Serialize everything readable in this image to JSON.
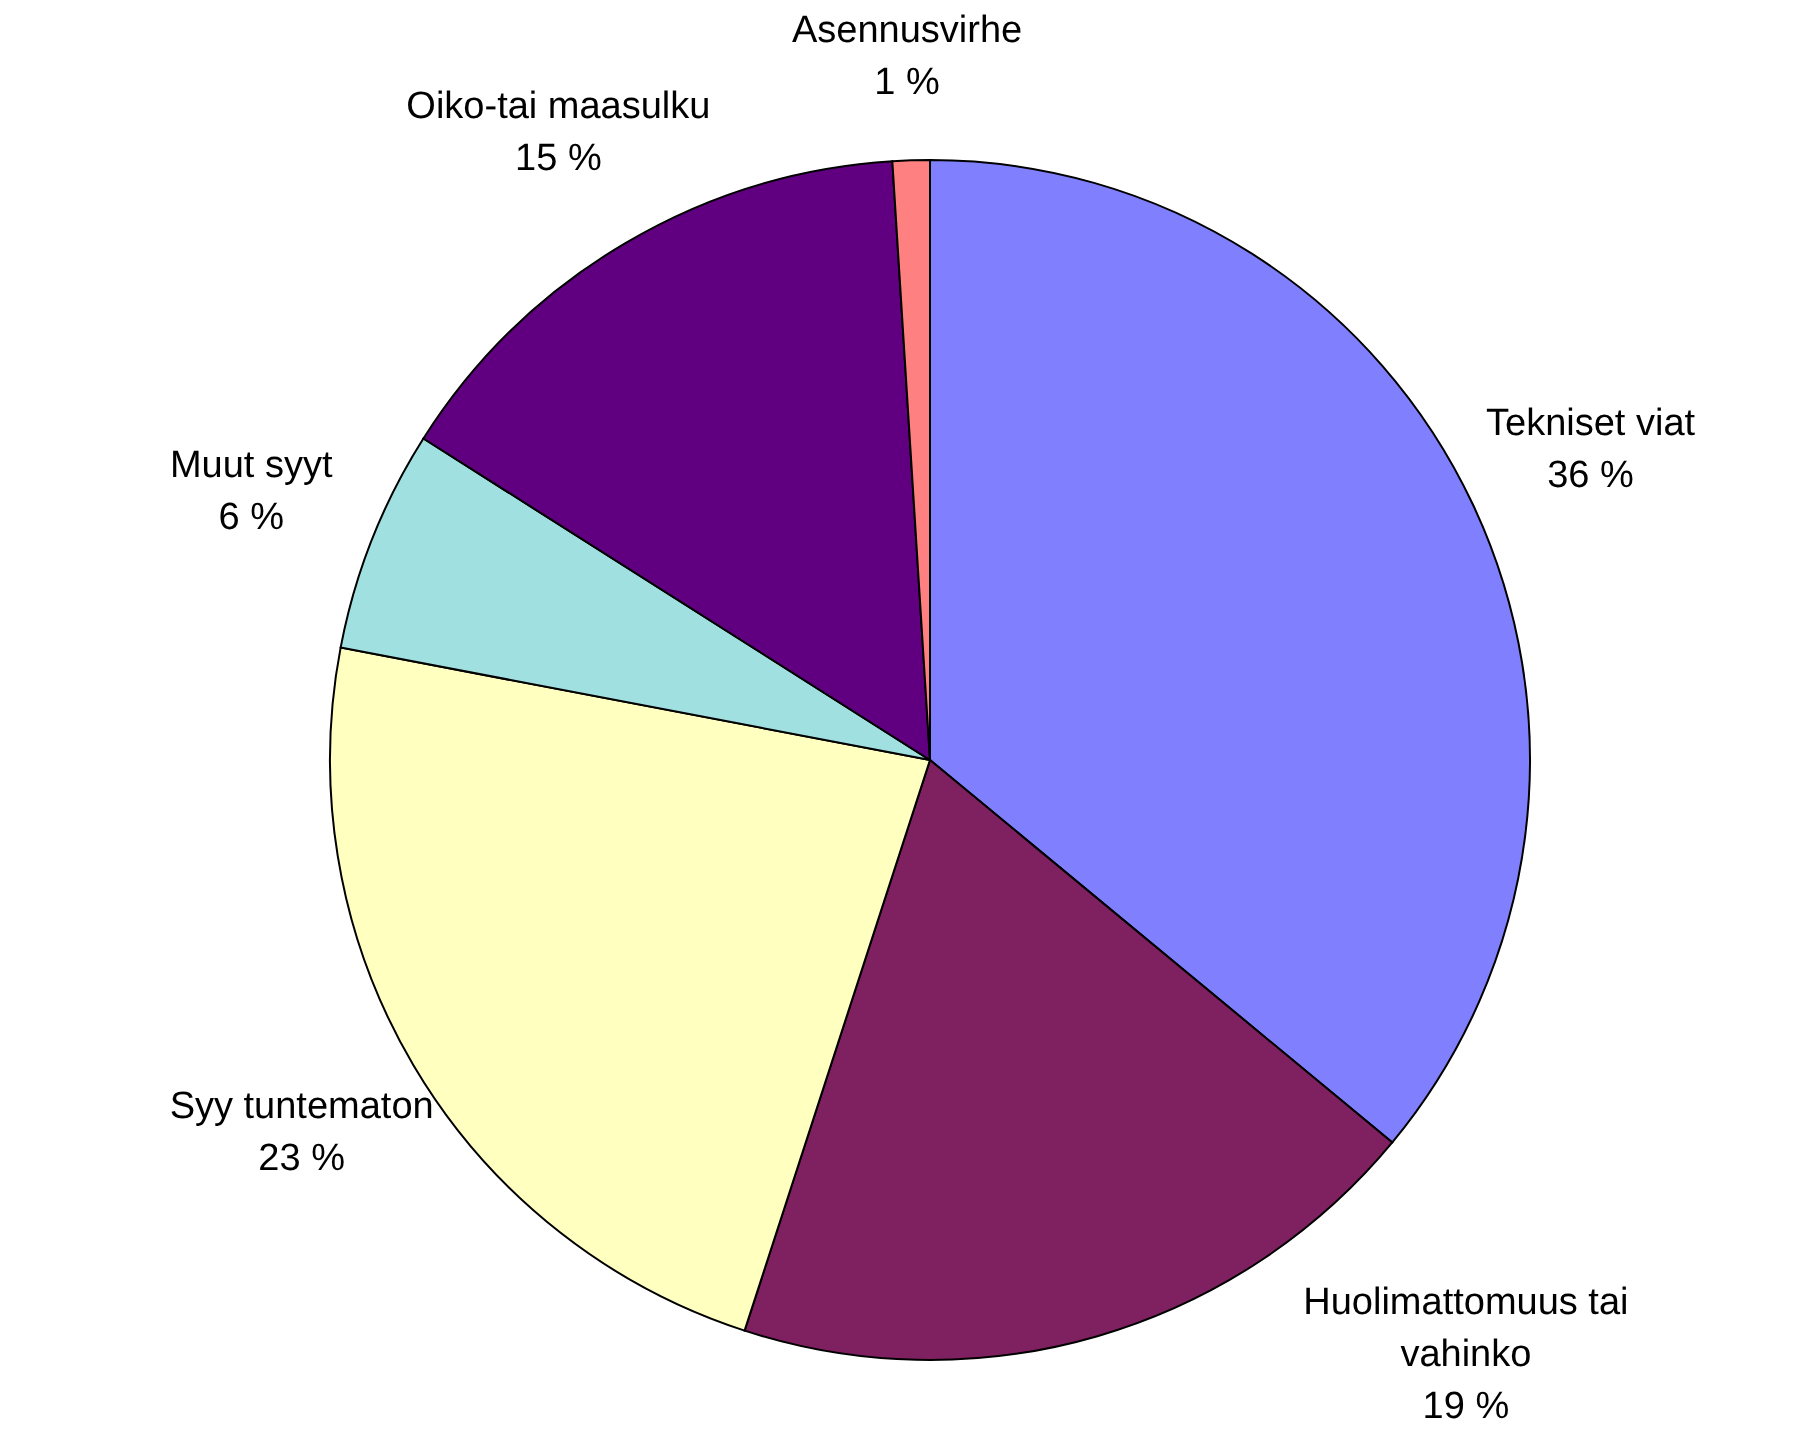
{
  "chart_data": {
    "type": "pie",
    "categories": [
      "Tekniset viat",
      "Huolimattomuus tai vahinko",
      "Syy tuntematon",
      "Muut syyt",
      "Oiko-tai maasulku",
      "Asennusvirhe"
    ],
    "values": [
      36,
      19,
      23,
      6,
      15,
      1
    ],
    "value_labels": [
      "36 %",
      "19 %",
      "23 %",
      "6 %",
      "15 %",
      "1 %"
    ],
    "colors": [
      "#8080ff",
      "#7f2060",
      "#ffffc0",
      "#a0e0e0",
      "#600080",
      "#ff8080"
    ]
  }
}
